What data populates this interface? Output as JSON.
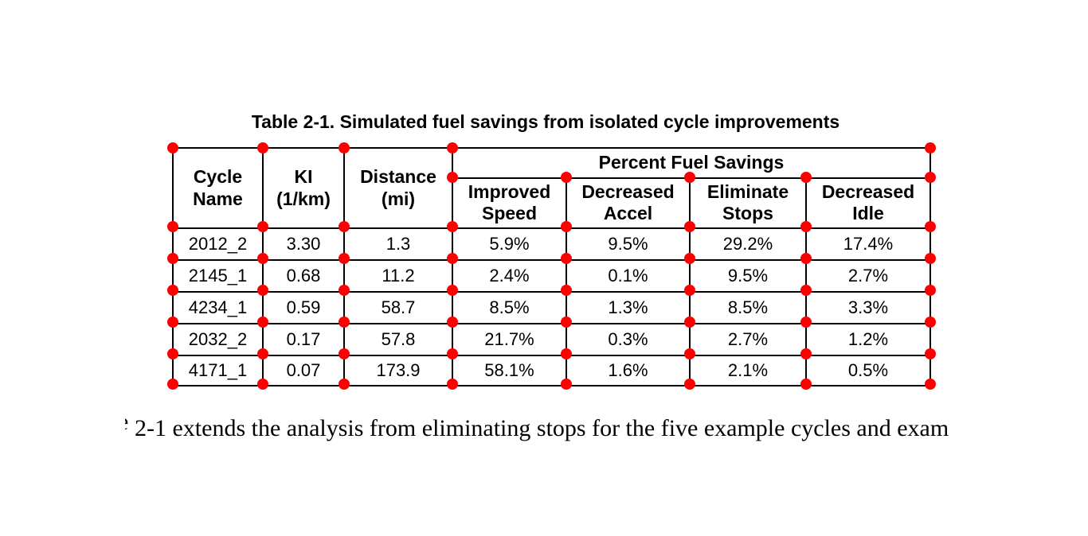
{
  "caption": "Table 2-1. Simulated fuel savings from isolated cycle improvements",
  "table": {
    "merged_headers": [
      "Cycle\nName",
      "KI\n(1/km)",
      "Distance\n(mi)"
    ],
    "span_header": "Percent Fuel Savings",
    "sub_headers": [
      "Improved\nSpeed",
      "Decreased\nAccel",
      "Eliminate\nStops",
      "Decreased\nIdle"
    ],
    "rows": [
      [
        "2012_2",
        "3.30",
        "1.3",
        "5.9%",
        "9.5%",
        "29.2%",
        "17.4%"
      ],
      [
        "2145_1",
        "0.68",
        "11.2",
        "2.4%",
        "0.1%",
        "9.5%",
        "2.7%"
      ],
      [
        "4234_1",
        "0.59",
        "58.7",
        "8.5%",
        "1.3%",
        "8.5%",
        "3.3%"
      ],
      [
        "2032_2",
        "0.17",
        "57.8",
        "21.7%",
        "0.3%",
        "2.7%",
        "1.2%"
      ],
      [
        "4171_1",
        "0.07",
        "173.9",
        "58.1%",
        "1.6%",
        "2.1%",
        "0.5%"
      ]
    ]
  },
  "body_text": {
    "left_fragment": "e",
    "text": "2-1 extends the analysis from eliminating stops for the five example cycles and exam"
  },
  "colors": {
    "marker": "#ff0000",
    "line": "#000000",
    "background": "#ffffff"
  }
}
